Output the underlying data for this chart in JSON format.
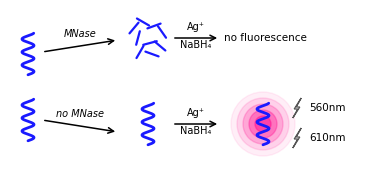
{
  "bg_color": "#ffffff",
  "dna_color": "#1a1aff",
  "arrow_color": "#000000",
  "glow_color": "#ff1493",
  "text_color": "#000000",
  "top_label_mnase": "MNase",
  "top_label_ag": "Ag⁺",
  "top_label_nabh4": "NaBH₄",
  "top_result": "no fluorescence",
  "bottom_label_nomnase": "no MNase",
  "bottom_label_ag": "Ag⁺",
  "bottom_label_nabh4": "NaBH₄",
  "emission1": "560nm",
  "emission2": "610nm",
  "figsize": [
    3.78,
    1.72
  ],
  "dpi": 100
}
